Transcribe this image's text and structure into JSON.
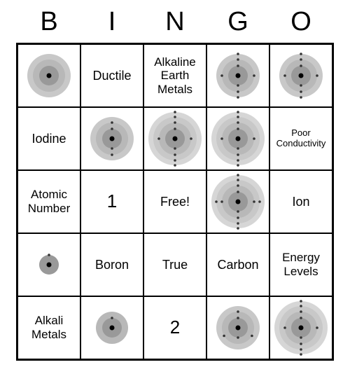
{
  "header": {
    "letters": [
      "B",
      "I",
      "N",
      "G",
      "O"
    ]
  },
  "colors": {
    "shell1": "#999999",
    "shell2": "#b8b8b8",
    "shell3": "#c8c8c8",
    "shell4": "#d6d6d6",
    "nucleus": "#000000",
    "electron": "#333333",
    "border": "#000000",
    "bg": "#ffffff"
  },
  "cells": [
    [
      {
        "t": "atom",
        "shells": 3,
        "e": [
          0,
          0,
          0
        ]
      },
      {
        "t": "text",
        "v": "Ductile"
      },
      {
        "t": "text",
        "v": "Alkaline Earth Metals",
        "cls": "med"
      },
      {
        "t": "atom",
        "shells": 3,
        "e": [
          2,
          4,
          2
        ]
      },
      {
        "t": "atom",
        "shells": 3,
        "e": [
          2,
          4,
          2
        ]
      }
    ],
    [
      {
        "t": "text",
        "v": "Iodine"
      },
      {
        "t": "atom",
        "shells": 3,
        "e": [
          2,
          2,
          0
        ]
      },
      {
        "t": "atom",
        "shells": 4,
        "e": [
          2,
          4,
          2,
          2
        ]
      },
      {
        "t": "atom",
        "shells": 4,
        "e": [
          2,
          4,
          2,
          2
        ]
      },
      {
        "t": "text",
        "v": "Poor Conductivity",
        "cls": "small"
      }
    ],
    [
      {
        "t": "text",
        "v": "Atomic Number",
        "cls": "med"
      },
      {
        "t": "text",
        "v": "1",
        "cls": "big"
      },
      {
        "t": "text",
        "v": "Free!"
      },
      {
        "t": "atom",
        "shells": 4,
        "e": [
          2,
          4,
          4,
          2
        ]
      },
      {
        "t": "text",
        "v": "Ion"
      }
    ],
    [
      {
        "t": "atom",
        "shells": 1,
        "e": [
          1
        ]
      },
      {
        "t": "text",
        "v": "Boron"
      },
      {
        "t": "text",
        "v": "True"
      },
      {
        "t": "text",
        "v": "Carbon"
      },
      {
        "t": "text",
        "v": "Energy Levels",
        "cls": "med"
      }
    ],
    [
      {
        "t": "text",
        "v": "Alkali Metals",
        "cls": "med"
      },
      {
        "t": "atom",
        "shells": 2,
        "e": [
          1,
          0
        ]
      },
      {
        "t": "text",
        "v": "2",
        "cls": "big"
      },
      {
        "t": "atom",
        "shells": 3,
        "e": [
          2,
          3,
          0
        ]
      },
      {
        "t": "atom",
        "shells": 4,
        "e": [
          2,
          4,
          2,
          2
        ]
      }
    ]
  ]
}
